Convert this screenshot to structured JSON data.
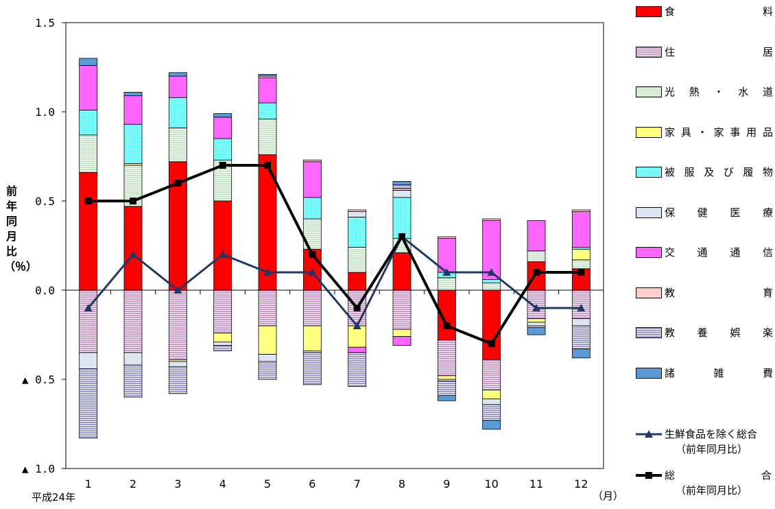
{
  "chart_data": {
    "type": "bar",
    "stacked": true,
    "title": "",
    "ylabel": "前年同月比（％）",
    "x_start_label": "平成24年",
    "x_unit_label": "（月）",
    "categories": [
      "1",
      "2",
      "3",
      "4",
      "5",
      "6",
      "7",
      "8",
      "9",
      "10",
      "11",
      "12"
    ],
    "ylim": [
      -1.0,
      1.5
    ],
    "yticks": [
      {
        "value": 1.5,
        "label": "1.5"
      },
      {
        "value": 1.0,
        "label": "1.0"
      },
      {
        "value": 0.5,
        "label": "0.5"
      },
      {
        "value": 0.0,
        "label": "0.0"
      },
      {
        "value": -0.5,
        "label": "▲ 0.5"
      },
      {
        "value": -1.0,
        "label": "▲ 1.0"
      }
    ],
    "series": [
      {
        "name": "食料",
        "legend": "食　　　　料",
        "color": "#ff0000",
        "pattern": "solid",
        "values": [
          0.66,
          0.47,
          0.72,
          0.5,
          0.76,
          0.23,
          0.1,
          0.21,
          -0.28,
          -0.39,
          0.16,
          0.12
        ]
      },
      {
        "name": "住居",
        "legend": "住　　　　居",
        "color": "#cc99cc",
        "pattern": "hlines",
        "values": [
          -0.35,
          -0.35,
          -0.39,
          -0.24,
          -0.2,
          -0.2,
          -0.2,
          -0.22,
          -0.2,
          -0.17,
          -0.16,
          -0.16
        ]
      },
      {
        "name": "光熱・水道",
        "legend": "光 熱 ・ 水 道",
        "color": "#c6e6c6",
        "pattern": "hlines",
        "values": [
          0.21,
          0.23,
          0.19,
          0.23,
          0.2,
          0.17,
          0.14,
          0.08,
          0.07,
          0.04,
          0.06,
          0.05
        ]
      },
      {
        "name": "家具・家事用品",
        "legend": "家具・家事用品",
        "color": "#ffff80",
        "pattern": "solid",
        "values": [
          0.0,
          0.01,
          -0.01,
          -0.05,
          -0.16,
          -0.14,
          -0.12,
          -0.04,
          -0.02,
          -0.05,
          -0.02,
          0.06
        ]
      },
      {
        "name": "被服及び履物",
        "legend": "被服及び履物",
        "color": "#66ffff",
        "pattern": "dots",
        "values": [
          0.14,
          0.22,
          0.17,
          0.12,
          0.09,
          0.12,
          0.17,
          0.23,
          0.03,
          0.02,
          0.0,
          0.01
        ]
      },
      {
        "name": "保健医療",
        "legend": "保　健　医　療",
        "color": "#dce6f2",
        "pattern": "solid",
        "values": [
          -0.09,
          -0.07,
          -0.03,
          -0.02,
          -0.04,
          -0.01,
          0.03,
          0.04,
          -0.01,
          -0.03,
          -0.02,
          -0.04
        ]
      },
      {
        "name": "交通通信",
        "legend": "交　通　通　信",
        "color": "#ff66ff",
        "pattern": "solid",
        "values": [
          0.25,
          0.16,
          0.12,
          0.12,
          0.14,
          0.2,
          -0.03,
          -0.05,
          0.19,
          0.33,
          0.17,
          0.2
        ]
      },
      {
        "name": "教育",
        "legend": "教　　　　育",
        "color": "#ffcccc",
        "pattern": "solid",
        "values": [
          0.0,
          0.0,
          0.0,
          0.0,
          0.01,
          0.01,
          0.01,
          0.01,
          0.01,
          0.01,
          0.0,
          0.01
        ]
      },
      {
        "name": "教養娯楽",
        "legend": "教　養　娯　楽",
        "color": "#9999cc",
        "pattern": "hlines",
        "values": [
          -0.39,
          -0.18,
          -0.15,
          -0.03,
          -0.1,
          -0.18,
          -0.19,
          0.02,
          -0.08,
          -0.09,
          -0.01,
          -0.13
        ]
      },
      {
        "name": "諸雑費",
        "legend": "諸　　雑　　費",
        "color": "#5b9bd5",
        "pattern": "solid",
        "values": [
          0.04,
          0.02,
          0.02,
          0.02,
          0.01,
          0.0,
          0.0,
          0.02,
          -0.03,
          -0.05,
          -0.04,
          -0.05
        ]
      }
    ],
    "lines": [
      {
        "name": "生鮮食品を除く総合（前年同月比）",
        "legend1": "生鮮食品を除く総合",
        "legend2": "（前年同月比）",
        "color": "#1f3864",
        "marker": "triangle",
        "values": [
          -0.1,
          0.2,
          0.0,
          0.2,
          0.1,
          0.1,
          -0.2,
          0.3,
          0.1,
          0.1,
          -0.1,
          -0.1
        ]
      },
      {
        "name": "総合（前年同月比）",
        "legend1": "総　　　　合",
        "legend2": "（前年同月比）",
        "color": "#000000",
        "marker": "square",
        "values": [
          0.5,
          0.5,
          0.6,
          0.7,
          0.7,
          0.2,
          -0.1,
          0.3,
          -0.2,
          -0.3,
          0.1,
          0.1
        ]
      }
    ],
    "legend_position": "right",
    "grid": false
  }
}
